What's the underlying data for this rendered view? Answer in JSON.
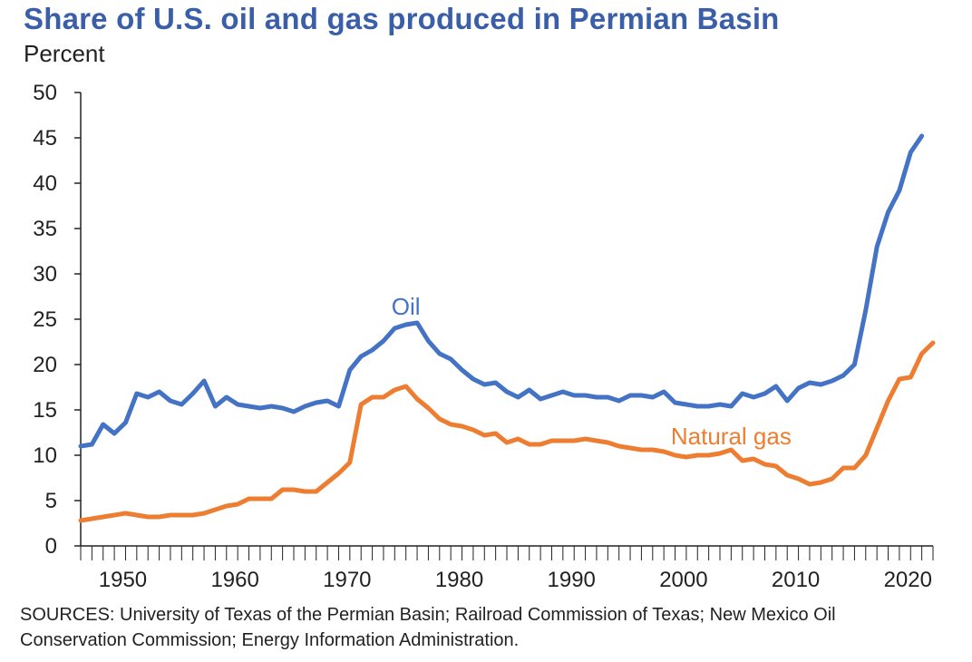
{
  "title": "Share of U.S. oil and gas produced in Permian Basin",
  "sources": "SOURCES: University of Texas of the Permian Basin; Railroad Commission of Texas; New Mexico Oil Conservation Commission; Energy Information Administration.",
  "colors": {
    "oil": "#4472c4",
    "gas": "#ed7d31",
    "title": "#3a5fa8"
  },
  "chart_data": {
    "type": "line",
    "title": "Share of U.S. oil and gas produced in Permian Basin",
    "ylabel": "Percent",
    "xlabel": "",
    "ylim": [
      0,
      50
    ],
    "xlim": [
      1946,
      2022
    ],
    "yticks": [
      0,
      5,
      10,
      15,
      20,
      25,
      30,
      35,
      40,
      45,
      50
    ],
    "xticks": [
      1950,
      1960,
      1970,
      1980,
      1990,
      2000,
      2010,
      2020
    ],
    "grid": false,
    "series": [
      {
        "name": "Oil",
        "x": [
          1946,
          1947,
          1948,
          1949,
          1950,
          1951,
          1952,
          1953,
          1954,
          1955,
          1956,
          1957,
          1958,
          1959,
          1960,
          1961,
          1962,
          1963,
          1964,
          1965,
          1966,
          1967,
          1968,
          1969,
          1970,
          1971,
          1972,
          1973,
          1974,
          1975,
          1976,
          1977,
          1978,
          1979,
          1980,
          1981,
          1982,
          1983,
          1984,
          1985,
          1986,
          1987,
          1988,
          1989,
          1990,
          1991,
          1992,
          1993,
          1994,
          1995,
          1996,
          1997,
          1998,
          1999,
          2000,
          2001,
          2002,
          2003,
          2004,
          2005,
          2006,
          2007,
          2008,
          2009,
          2010,
          2011,
          2012,
          2013,
          2014,
          2015,
          2016,
          2017,
          2018,
          2019,
          2020,
          2021,
          2022
        ],
        "values": [
          11.0,
          11.2,
          13.4,
          12.4,
          13.6,
          16.8,
          16.4,
          17.0,
          16.0,
          15.6,
          16.8,
          18.2,
          15.4,
          16.4,
          15.6,
          15.4,
          15.2,
          15.4,
          15.2,
          14.8,
          15.4,
          15.8,
          16.0,
          15.4,
          19.4,
          20.9,
          21.6,
          22.6,
          24.0,
          24.4,
          24.6,
          22.6,
          21.2,
          20.6,
          19.4,
          18.4,
          17.8,
          18.0,
          17.0,
          16.4,
          17.2,
          16.2,
          16.6,
          17.0,
          16.6,
          16.6,
          16.4,
          16.4,
          16.0,
          16.6,
          16.6,
          16.4,
          17.0,
          15.8,
          15.6,
          15.4,
          15.4,
          15.6,
          15.4,
          16.8,
          16.4,
          16.8,
          17.6,
          16.0,
          17.4,
          18.0,
          17.8,
          18.2,
          18.8,
          20.0,
          26.0,
          33.0,
          36.8,
          39.2,
          43.4,
          45.2,
          null
        ]
      },
      {
        "name": "Natural gas",
        "x": [
          1946,
          1947,
          1948,
          1949,
          1950,
          1951,
          1952,
          1953,
          1954,
          1955,
          1956,
          1957,
          1958,
          1959,
          1960,
          1961,
          1962,
          1963,
          1964,
          1965,
          1966,
          1967,
          1968,
          1969,
          1970,
          1971,
          1972,
          1973,
          1974,
          1975,
          1976,
          1977,
          1978,
          1979,
          1980,
          1981,
          1982,
          1983,
          1984,
          1985,
          1986,
          1987,
          1988,
          1989,
          1990,
          1991,
          1992,
          1993,
          1994,
          1995,
          1996,
          1997,
          1998,
          1999,
          2000,
          2001,
          2002,
          2003,
          2004,
          2005,
          2006,
          2007,
          2008,
          2009,
          2010,
          2011,
          2012,
          2013,
          2014,
          2015,
          2016,
          2017,
          2018,
          2019,
          2020,
          2021,
          2022
        ],
        "values": [
          2.8,
          3.0,
          3.2,
          3.4,
          3.6,
          3.4,
          3.2,
          3.2,
          3.4,
          3.4,
          3.4,
          3.6,
          4.0,
          4.4,
          4.6,
          5.2,
          5.2,
          5.2,
          6.2,
          6.2,
          6.0,
          6.0,
          7.0,
          8.0,
          9.2,
          15.6,
          16.4,
          16.4,
          17.2,
          17.6,
          16.2,
          15.2,
          14.0,
          13.4,
          13.2,
          12.8,
          12.2,
          12.4,
          11.4,
          11.8,
          11.2,
          11.2,
          11.6,
          11.6,
          11.6,
          11.8,
          11.6,
          11.4,
          11.0,
          10.8,
          10.6,
          10.6,
          10.4,
          10.0,
          9.8,
          10.0,
          10.0,
          10.2,
          10.6,
          9.4,
          9.6,
          9.0,
          8.8,
          7.8,
          7.4,
          6.8,
          7.0,
          7.4,
          8.6,
          8.6,
          10.0,
          13.0,
          16.0,
          18.4,
          18.6,
          21.2,
          22.4
        ]
      }
    ],
    "annotations": [
      {
        "text": "Oil",
        "series": "Oil"
      },
      {
        "text": "Natural gas",
        "series": "Natural gas"
      }
    ]
  }
}
